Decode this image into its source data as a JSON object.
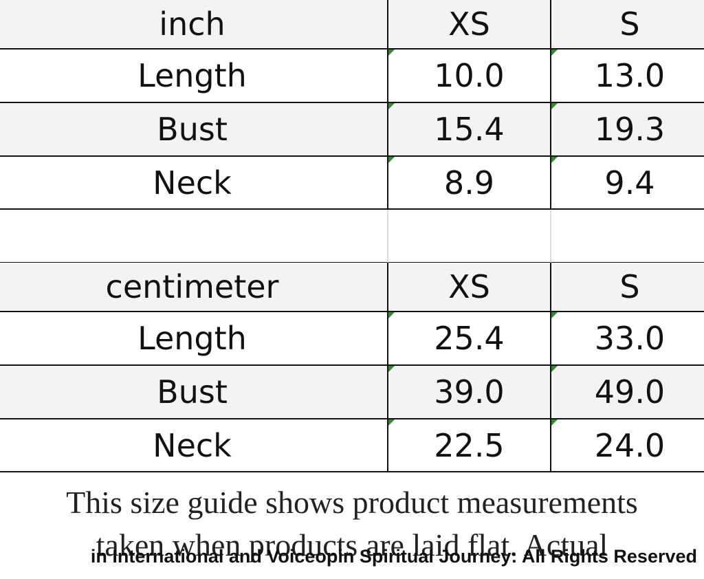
{
  "tables": [
    {
      "header": [
        "inch",
        "XS",
        "S"
      ],
      "rows": [
        [
          "Length",
          "10.0",
          "13.0"
        ],
        [
          "Bust",
          "15.4",
          "19.3"
        ],
        [
          "Neck",
          "8.9",
          "9.4"
        ]
      ]
    },
    {
      "header": [
        "centimeter",
        "XS",
        "S"
      ],
      "rows": [
        [
          "Length",
          "25.4",
          "33.0"
        ],
        [
          "Bust",
          "39.0",
          "49.0"
        ],
        [
          "Neck",
          "22.5",
          "24.0"
        ]
      ]
    }
  ],
  "caption": [
    "This size guide shows product measurements",
    "taken when products are laid flat. Actual"
  ],
  "watermark": "in International and Voiceopin Spiritual Journey: All Rights Reserved"
}
